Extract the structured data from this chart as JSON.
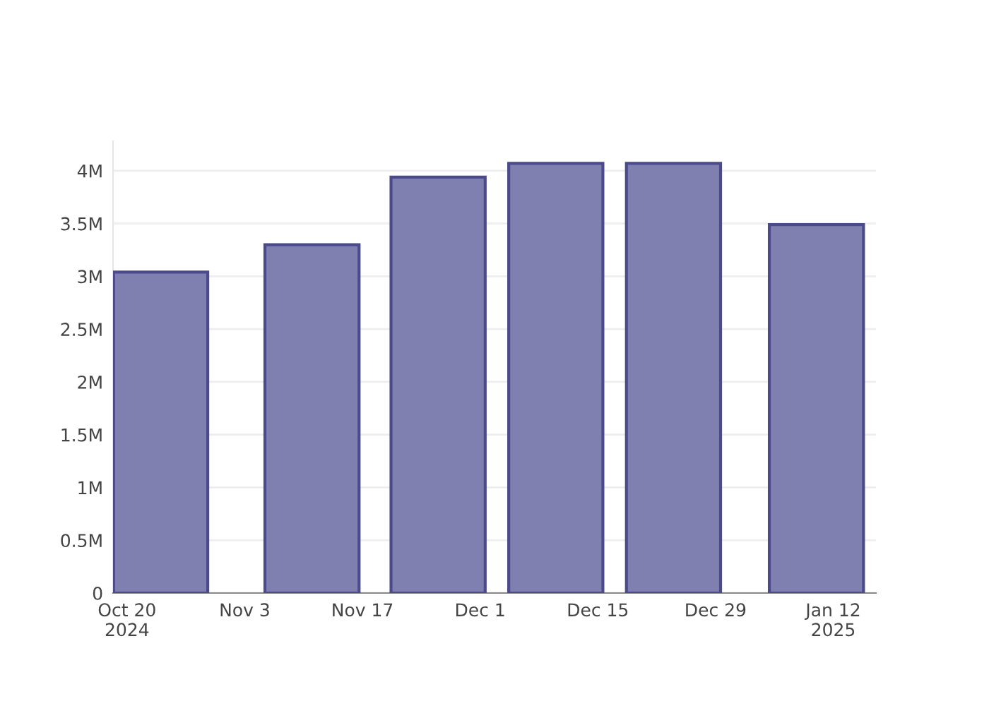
{
  "chart_data": {
    "type": "bar",
    "x": [
      "2024-10-24",
      "2024-11-11",
      "2024-11-26",
      "2024-12-10",
      "2024-12-24",
      "2025-01-10"
    ],
    "values": [
      3040000,
      3300000,
      3940000,
      4070000,
      4070000,
      3490000
    ],
    "color": "#7f7fb0",
    "xlim": [
      "2024-10-18T08:00",
      "2025-01-17T02:00"
    ],
    "xticks": [
      {
        "value": "2024-10-20",
        "label": "Oct 20\n2024"
      },
      {
        "value": "2024-11-03",
        "label": "Nov 3"
      },
      {
        "value": "2024-11-17",
        "label": "Nov 17"
      },
      {
        "value": "2024-12-01",
        "label": "Dec 1"
      },
      {
        "value": "2024-12-15",
        "label": "Dec 15"
      },
      {
        "value": "2024-12-29",
        "label": "Dec 29"
      },
      {
        "value": "2025-01-12",
        "label": "Jan 12\n2025"
      }
    ],
    "ylim": [
      0,
      4280000
    ],
    "yticks": [
      0,
      {
        "value": 500000,
        "label": "0.5M"
      },
      {
        "value": 1000000,
        "label": "1M"
      },
      {
        "value": 1500000,
        "label": "1.5M"
      },
      {
        "value": 2000000,
        "label": "2M"
      },
      {
        "value": 2500000,
        "label": "2.5M"
      },
      {
        "value": 3000000,
        "label": "3M"
      },
      {
        "value": 3500000,
        "label": "3.5M"
      },
      {
        "value": 4000000,
        "label": "4M"
      }
    ],
    "grid": "y"
  }
}
